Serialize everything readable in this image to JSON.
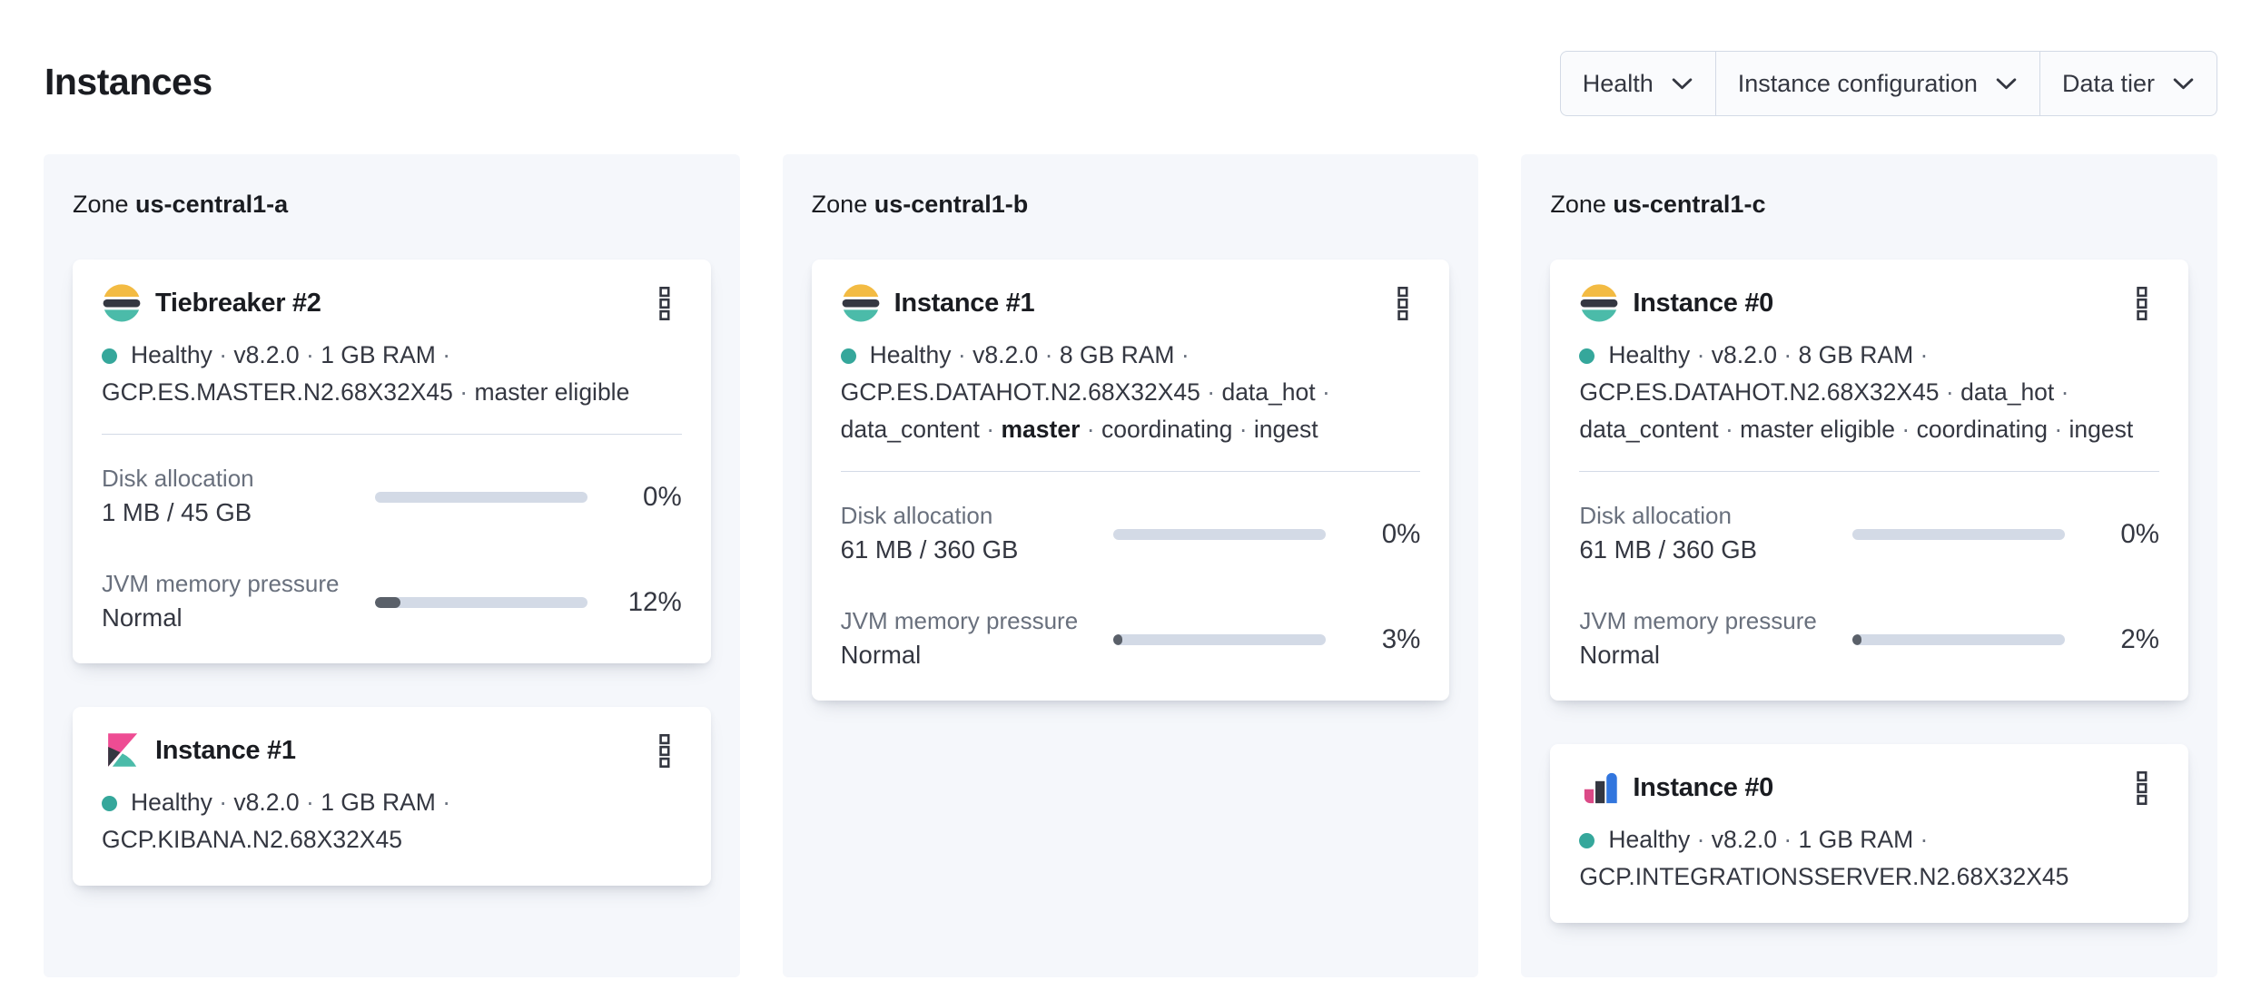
{
  "page": {
    "title": "Instances"
  },
  "filters": {
    "items": [
      {
        "label": "Health"
      },
      {
        "label": "Instance configuration"
      },
      {
        "label": "Data tier"
      }
    ]
  },
  "colors": {
    "text_primary": "#1A1C21",
    "text_body": "#343741",
    "text_subdued": "#69707D",
    "border": "#D3DAE6",
    "panel_background": "#F5F7FB",
    "healthy_dot": "#35A79B",
    "progress_track": "#D3DAE6",
    "progress_fill": "#5A6069",
    "elastic_yellow": "#F3BB43",
    "elastic_dark": "#343741",
    "elastic_teal": "#4BBBA9",
    "kibana_pink": "#EE4C93",
    "agent_pink": "#DB4A87",
    "agent_blue": "#3276DE"
  },
  "zones": [
    {
      "label": "Zone",
      "name": "us-central1-a",
      "cards": [
        {
          "logo": "elasticsearch",
          "title": "Tiebreaker #2",
          "status_lines": [
            [
              {
                "text": "Healthy"
              },
              {
                "text": "v8.2.0"
              },
              {
                "text": "1 GB RAM"
              }
            ],
            [
              {
                "text": "GCP.ES.MASTER.N2.68X32X45"
              },
              {
                "text": "master eligible"
              }
            ]
          ],
          "metrics": [
            {
              "label": "Disk allocation",
              "value": "1 MB / 45 GB",
              "percent": "0%",
              "percent_value": 0
            },
            {
              "label": "JVM memory pressure",
              "value": "Normal",
              "percent": "12%",
              "percent_value": 12
            }
          ]
        },
        {
          "logo": "kibana",
          "title": "Instance #1",
          "status_lines": [
            [
              {
                "text": "Healthy"
              },
              {
                "text": "v8.2.0"
              },
              {
                "text": "1 GB RAM"
              }
            ],
            [
              {
                "text": "GCP.KIBANA.N2.68X32X45"
              }
            ]
          ],
          "metrics": []
        }
      ]
    },
    {
      "label": "Zone",
      "name": "us-central1-b",
      "cards": [
        {
          "logo": "elasticsearch",
          "title": "Instance #1",
          "status_lines": [
            [
              {
                "text": "Healthy"
              },
              {
                "text": "v8.2.0"
              },
              {
                "text": "8 GB RAM"
              }
            ],
            [
              {
                "text": "GCP.ES.DATAHOT.N2.68X32X45"
              },
              {
                "text": "data_hot"
              }
            ],
            [
              {
                "text": "data_content"
              },
              {
                "text": "master",
                "bold": true
              },
              {
                "text": "coordinating"
              },
              {
                "text": "ingest"
              }
            ]
          ],
          "metrics": [
            {
              "label": "Disk allocation",
              "value": "61 MB / 360 GB",
              "percent": "0%",
              "percent_value": 0
            },
            {
              "label": "JVM memory pressure",
              "value": "Normal",
              "percent": "3%",
              "percent_value": 3
            }
          ]
        }
      ]
    },
    {
      "label": "Zone",
      "name": "us-central1-c",
      "cards": [
        {
          "logo": "elasticsearch",
          "title": "Instance #0",
          "status_lines": [
            [
              {
                "text": "Healthy"
              },
              {
                "text": "v8.2.0"
              },
              {
                "text": "8 GB RAM"
              }
            ],
            [
              {
                "text": "GCP.ES.DATAHOT.N2.68X32X45"
              },
              {
                "text": "data_hot"
              }
            ],
            [
              {
                "text": "data_content"
              },
              {
                "text": "master eligible"
              },
              {
                "text": "coordinating"
              },
              {
                "text": "ingest"
              }
            ]
          ],
          "metrics": [
            {
              "label": "Disk allocation",
              "value": "61 MB / 360 GB",
              "percent": "0%",
              "percent_value": 0
            },
            {
              "label": "JVM memory pressure",
              "value": "Normal",
              "percent": "2%",
              "percent_value": 2
            }
          ]
        },
        {
          "logo": "integrations-server",
          "title": "Instance #0",
          "status_lines": [
            [
              {
                "text": "Healthy"
              },
              {
                "text": "v8.2.0"
              },
              {
                "text": "1 GB RAM"
              }
            ],
            [
              {
                "text": "GCP.INTEGRATIONSSERVER.N2.68X32X45"
              }
            ]
          ],
          "metrics": []
        }
      ]
    }
  ]
}
